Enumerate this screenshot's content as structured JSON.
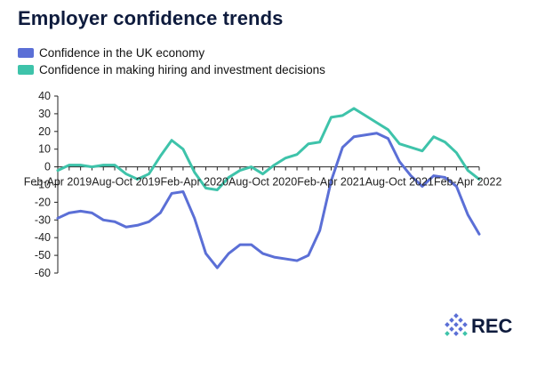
{
  "header": {
    "title": "Employer confidence trends"
  },
  "colors": {
    "economy": "#5b6fd6",
    "hiring": "#3ec3aa",
    "axis": "#222222",
    "title": "#0e1b3d"
  },
  "logo": {
    "text": "REC",
    "icon": "rec-dots-logo-icon"
  },
  "chart_data": {
    "type": "line",
    "title": "Employer confidence trends",
    "xlabel": "",
    "ylabel": "",
    "ylim": [
      -60,
      40
    ],
    "yticks": [
      40,
      30,
      20,
      10,
      0,
      -10,
      -20,
      -30,
      -40,
      -50,
      -60
    ],
    "xtick_labels": [
      "Feb-Apr 2019",
      "Aug-Oct 2019",
      "Feb-Apr 2020",
      "Aug-Oct 2020",
      "Feb-Apr 2021",
      "Aug-Oct 2021",
      "Feb-Apr 2022"
    ],
    "xtick_index": [
      0,
      6,
      12,
      18,
      24,
      30,
      36
    ],
    "grid": false,
    "legend": "top-left",
    "series": [
      {
        "name": "Confidence in the UK economy",
        "color": "#5b6fd6",
        "values": [
          -29,
          -26,
          -25,
          -26,
          -30,
          -31,
          -34,
          -33,
          -31,
          -26,
          -15,
          -14,
          -29,
          -49,
          -57,
          -49,
          -44,
          -44,
          -49,
          -51,
          -52,
          -53,
          -50,
          -36,
          -8,
          11,
          17,
          18,
          19,
          16,
          3,
          -5,
          -11,
          -5,
          -6,
          -11,
          -27,
          -38
        ]
      },
      {
        "name": "Confidence in making hiring and investment decisions",
        "color": "#3ec3aa",
        "values": [
          -2,
          1,
          1,
          0,
          1,
          1,
          -4,
          -7,
          -4,
          6,
          15,
          10,
          -3,
          -12,
          -13,
          -6,
          -2,
          0,
          -4,
          1,
          5,
          7,
          13,
          14,
          28,
          29,
          33,
          29,
          25,
          21,
          13,
          11,
          9,
          17,
          14,
          8,
          -2,
          -7
        ]
      }
    ]
  }
}
